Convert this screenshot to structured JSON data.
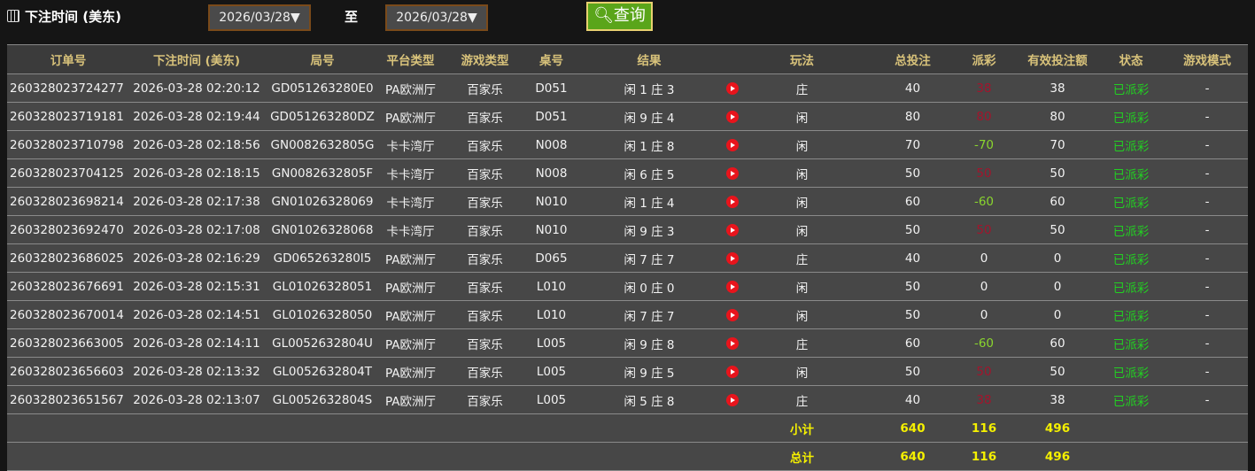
{
  "filter": {
    "label": "下注时间 (美东)",
    "start_date": "2026/03/28▼",
    "to_label": "至",
    "end_date": "2026/03/28▼",
    "query_label": "查询",
    "icons": {
      "calendar": "calendar-icon",
      "search": "search-icon"
    }
  },
  "table": {
    "headers": [
      "订单号",
      "下注时间 (美东)",
      "局号",
      "平台类型",
      "游戏类型",
      "桌号",
      "结果",
      "",
      "玩法",
      "总投注",
      "派彩",
      "有效投注额",
      "状态",
      "游戏模式"
    ],
    "rows": [
      {
        "order": "260328023724277",
        "time": "2026-03-28 02:20:12",
        "round": "GD051263280E0",
        "platform": "PA欧洲厅",
        "game": "百家乐",
        "table": "D051",
        "result": "闲 1 庄 3",
        "bet": "庄",
        "total": "40",
        "payout": "38",
        "payout_color": "red",
        "valid": "38",
        "status": "已派彩",
        "mode": "-"
      },
      {
        "order": "260328023719181",
        "time": "2026-03-28 02:19:44",
        "round": "GD051263280DZ",
        "platform": "PA欧洲厅",
        "game": "百家乐",
        "table": "D051",
        "result": "闲 9 庄 4",
        "bet": "闲",
        "total": "80",
        "payout": "80",
        "payout_color": "red",
        "valid": "80",
        "status": "已派彩",
        "mode": "-"
      },
      {
        "order": "260328023710798",
        "time": "2026-03-28 02:18:56",
        "round": "GN0082632805G",
        "platform": "卡卡湾厅",
        "game": "百家乐",
        "table": "N008",
        "result": "闲 1 庄 8",
        "bet": "闲",
        "total": "70",
        "payout": "-70",
        "payout_color": "green",
        "valid": "70",
        "status": "已派彩",
        "mode": "-"
      },
      {
        "order": "260328023704125",
        "time": "2026-03-28 02:18:15",
        "round": "GN0082632805F",
        "platform": "卡卡湾厅",
        "game": "百家乐",
        "table": "N008",
        "result": "闲 6 庄 5",
        "bet": "闲",
        "total": "50",
        "payout": "50",
        "payout_color": "red",
        "valid": "50",
        "status": "已派彩",
        "mode": "-"
      },
      {
        "order": "260328023698214",
        "time": "2026-03-28 02:17:38",
        "round": "GN01026328069",
        "platform": "卡卡湾厅",
        "game": "百家乐",
        "table": "N010",
        "result": "闲 1 庄 4",
        "bet": "闲",
        "total": "60",
        "payout": "-60",
        "payout_color": "green",
        "valid": "60",
        "status": "已派彩",
        "mode": "-"
      },
      {
        "order": "260328023692470",
        "time": "2026-03-28 02:17:08",
        "round": "GN01026328068",
        "platform": "卡卡湾厅",
        "game": "百家乐",
        "table": "N010",
        "result": "闲 9 庄 3",
        "bet": "闲",
        "total": "50",
        "payout": "50",
        "payout_color": "red",
        "valid": "50",
        "status": "已派彩",
        "mode": "-"
      },
      {
        "order": "260328023686025",
        "time": "2026-03-28 02:16:29",
        "round": "GD065263280I5",
        "platform": "PA欧洲厅",
        "game": "百家乐",
        "table": "D065",
        "result": "闲 7 庄 7",
        "bet": "庄",
        "total": "40",
        "payout": "0",
        "payout_color": "white",
        "valid": "0",
        "status": "已派彩",
        "mode": "-"
      },
      {
        "order": "260328023676691",
        "time": "2026-03-28 02:15:31",
        "round": "GL01026328051",
        "platform": "PA欧洲厅",
        "game": "百家乐",
        "table": "L010",
        "result": "闲 0 庄 0",
        "bet": "闲",
        "total": "50",
        "payout": "0",
        "payout_color": "white",
        "valid": "0",
        "status": "已派彩",
        "mode": "-"
      },
      {
        "order": "260328023670014",
        "time": "2026-03-28 02:14:51",
        "round": "GL01026328050",
        "platform": "PA欧洲厅",
        "game": "百家乐",
        "table": "L010",
        "result": "闲 7 庄 7",
        "bet": "闲",
        "total": "50",
        "payout": "0",
        "payout_color": "white",
        "valid": "0",
        "status": "已派彩",
        "mode": "-"
      },
      {
        "order": "260328023663005",
        "time": "2026-03-28 02:14:11",
        "round": "GL0052632804U",
        "platform": "PA欧洲厅",
        "game": "百家乐",
        "table": "L005",
        "result": "闲 9 庄 8",
        "bet": "庄",
        "total": "60",
        "payout": "-60",
        "payout_color": "green",
        "valid": "60",
        "status": "已派彩",
        "mode": "-"
      },
      {
        "order": "260328023656603",
        "time": "2026-03-28 02:13:32",
        "round": "GL0052632804T",
        "platform": "PA欧洲厅",
        "game": "百家乐",
        "table": "L005",
        "result": "闲 9 庄 5",
        "bet": "闲",
        "total": "50",
        "payout": "50",
        "payout_color": "red",
        "valid": "50",
        "status": "已派彩",
        "mode": "-"
      },
      {
        "order": "260328023651567",
        "time": "2026-03-28 02:13:07",
        "round": "GL0052632804S",
        "platform": "PA欧洲厅",
        "game": "百家乐",
        "table": "L005",
        "result": "闲 5 庄 8",
        "bet": "庄",
        "total": "40",
        "payout": "38",
        "payout_color": "red",
        "valid": "38",
        "status": "已派彩",
        "mode": "-"
      }
    ],
    "subtotal": {
      "label": "小计",
      "total": "640",
      "payout": "116",
      "valid": "496"
    },
    "grandtotal": {
      "label": "总计",
      "total": "640",
      "payout": "116",
      "valid": "496"
    },
    "colors": {
      "header_text": "#d8c27a",
      "payout_red": "#a3142c",
      "payout_green": "#8ad62e",
      "status_green": "#22d022",
      "total_yellow": "#f5f000",
      "query_button": "#5aa51a"
    }
  }
}
